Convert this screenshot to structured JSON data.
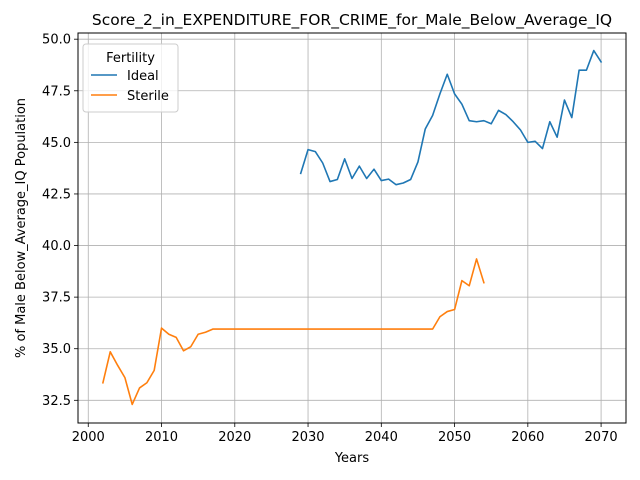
{
  "chart_data": {
    "type": "line",
    "title": "Score_2_in_EXPENDITURE_FOR_CRIME_for_Male_Below_Average_IQ",
    "xlabel": "Years",
    "ylabel": "% of Male Below_Average_IQ Population",
    "xlim": [
      1998.6,
      2073.4
    ],
    "ylim": [
      31.4,
      50.3
    ],
    "xticks": [
      2000,
      2010,
      2020,
      2030,
      2040,
      2050,
      2060,
      2070
    ],
    "yticks": [
      32.5,
      35.0,
      37.5,
      40.0,
      42.5,
      45.0,
      47.5,
      50.0
    ],
    "xtick_labels": [
      "2000",
      "2010",
      "2020",
      "2030",
      "2040",
      "2050",
      "2060",
      "2070"
    ],
    "ytick_labels": [
      "32.5",
      "35.0",
      "37.5",
      "40.0",
      "42.5",
      "45.0",
      "47.5",
      "50.0"
    ],
    "grid": true,
    "legend": {
      "title": "Fertility",
      "placement": "top-left"
    },
    "series": [
      {
        "name": "Ideal",
        "color": "#1f77b4",
        "x": [
          2029,
          2030,
          2031,
          2032,
          2033,
          2034,
          2035,
          2036,
          2037,
          2038,
          2039,
          2040,
          2041,
          2042,
          2043,
          2044,
          2045,
          2046,
          2047,
          2048,
          2049,
          2050,
          2051,
          2052,
          2053,
          2054,
          2055,
          2056,
          2057,
          2058,
          2059,
          2060,
          2061,
          2062,
          2063,
          2064,
          2065,
          2066,
          2067,
          2068,
          2069,
          2070
        ],
        "y": [
          43.5,
          44.65,
          44.55,
          44.0,
          43.1,
          43.2,
          44.2,
          43.25,
          43.85,
          43.25,
          43.7,
          43.15,
          43.22,
          42.95,
          43.03,
          43.2,
          44.05,
          45.65,
          46.3,
          47.35,
          48.3,
          47.35,
          46.85,
          46.05,
          46.0,
          46.05,
          45.9,
          46.55,
          46.35,
          46.0,
          45.6,
          45.0,
          45.05,
          44.7,
          46.0,
          45.25,
          47.05,
          46.2,
          48.5,
          48.5,
          49.45,
          48.9
        ]
      },
      {
        "name": "Sterile",
        "color": "#ff7f0e",
        "x": [
          2002,
          2003,
          2004,
          2005,
          2006,
          2007,
          2008,
          2009,
          2010,
          2011,
          2012,
          2013,
          2014,
          2015,
          2016,
          2017,
          2018,
          2019,
          2020,
          2021,
          2022,
          2023,
          2024,
          2025,
          2026,
          2027,
          2028,
          2029,
          2030,
          2031,
          2032,
          2033,
          2034,
          2035,
          2036,
          2037,
          2038,
          2039,
          2040,
          2041,
          2042,
          2043,
          2044,
          2045,
          2046,
          2047,
          2048,
          2049,
          2050,
          2051,
          2052,
          2053,
          2054
        ],
        "y": [
          33.35,
          34.85,
          34.2,
          33.6,
          32.3,
          33.1,
          33.35,
          33.95,
          36.0,
          35.7,
          35.55,
          34.9,
          35.1,
          35.7,
          35.8,
          35.95,
          35.95,
          35.95,
          35.95,
          35.95,
          35.95,
          35.95,
          35.95,
          35.95,
          35.95,
          35.95,
          35.95,
          35.95,
          35.95,
          35.95,
          35.95,
          35.95,
          35.95,
          35.95,
          35.95,
          35.95,
          35.95,
          35.95,
          35.95,
          35.95,
          35.95,
          35.95,
          35.95,
          35.95,
          35.95,
          35.95,
          36.55,
          36.8,
          36.9,
          38.3,
          38.05,
          39.35,
          38.2
        ]
      }
    ]
  }
}
